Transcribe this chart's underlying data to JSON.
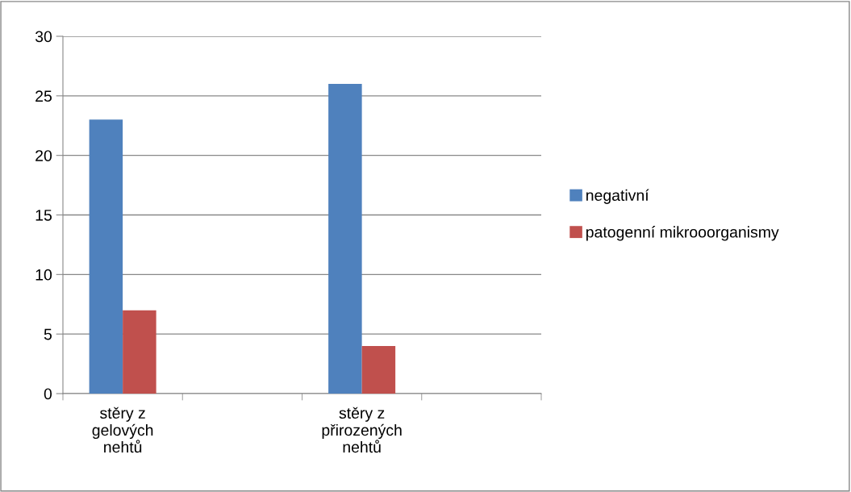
{
  "chart_data": {
    "type": "bar",
    "categories": [
      "stěry z\ngelových\nnehtů",
      null,
      "stěry z\npřirozených\nnehtů",
      null
    ],
    "series": [
      {
        "name": "negativní",
        "color": "#4f81bd",
        "values": [
          23,
          null,
          26,
          null
        ]
      },
      {
        "name": "patogenní mikrooorganismy",
        "color": "#c0504d",
        "values": [
          7,
          null,
          4,
          null
        ]
      }
    ],
    "ylim": [
      0,
      30
    ],
    "yticks": [
      0,
      5,
      10,
      15,
      20,
      25,
      30
    ],
    "grid": "y",
    "legend": "right"
  }
}
